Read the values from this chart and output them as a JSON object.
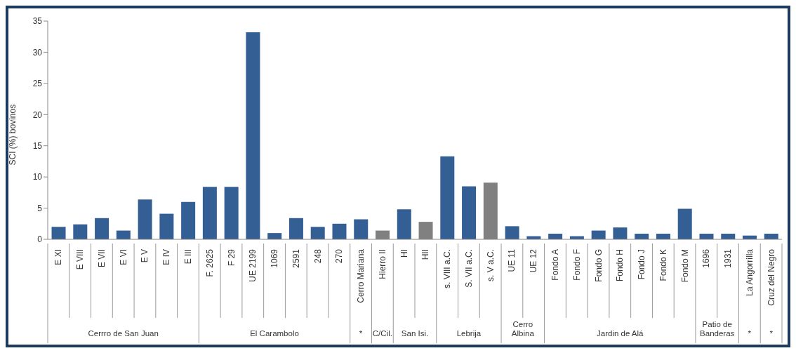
{
  "chart_data": {
    "type": "bar",
    "ylabel": "SCI (%) bovinos",
    "categories": [
      "E XI",
      "E VIII",
      "E VII",
      "E VI",
      "E V",
      "E IV",
      "E III",
      "F. 2625",
      "F 29",
      "UE 2199",
      "1069",
      "2591",
      "248",
      "270",
      "Cerro Mariana",
      "Hierro II",
      "HI",
      "HII",
      "s. VIII a.C.",
      "S. VII a.C.",
      "s. V a.C.",
      "UE 11",
      "UE 12",
      "Fondo A",
      "Fondo F",
      "Fondo G",
      "Fondo H",
      "Fondo J",
      "Fondo K",
      "Fondo M",
      "1696",
      "1931",
      "La Angorrilla",
      "Cruz del Negro"
    ],
    "values": [
      2.0,
      2.4,
      3.4,
      1.4,
      6.4,
      4.1,
      6.0,
      8.4,
      8.4,
      33.2,
      1.0,
      3.4,
      2.0,
      2.5,
      3.2,
      1.4,
      4.8,
      2.8,
      13.3,
      8.5,
      9.1,
      2.1,
      0.5,
      0.9,
      0.5,
      1.4,
      1.9,
      0.9,
      0.9,
      4.9,
      0.9,
      0.9,
      0.6,
      0.9
    ],
    "colors": [
      "#345f94",
      "#345f94",
      "#345f94",
      "#345f94",
      "#345f94",
      "#345f94",
      "#345f94",
      "#345f94",
      "#345f94",
      "#345f94",
      "#345f94",
      "#345f94",
      "#345f94",
      "#345f94",
      "#345f94",
      "#808080",
      "#345f94",
      "#808080",
      "#345f94",
      "#345f94",
      "#808080",
      "#345f94",
      "#345f94",
      "#345f94",
      "#345f94",
      "#345f94",
      "#345f94",
      "#345f94",
      "#345f94",
      "#345f94",
      "#345f94",
      "#345f94",
      "#345f94",
      "#345f94"
    ],
    "ylim": [
      0,
      35
    ],
    "yticks": [
      0,
      5,
      10,
      15,
      20,
      25,
      30,
      35
    ],
    "grid": false,
    "legend": false,
    "annotations": [
      "Cerrro de San Juan",
      "El Carambolo",
      "*",
      "C/Cil.",
      "San Isi.",
      "Lebrija",
      "Cerro Albina",
      "Jardin de Alá",
      "Patio de Banderas",
      "*",
      "*"
    ]
  }
}
